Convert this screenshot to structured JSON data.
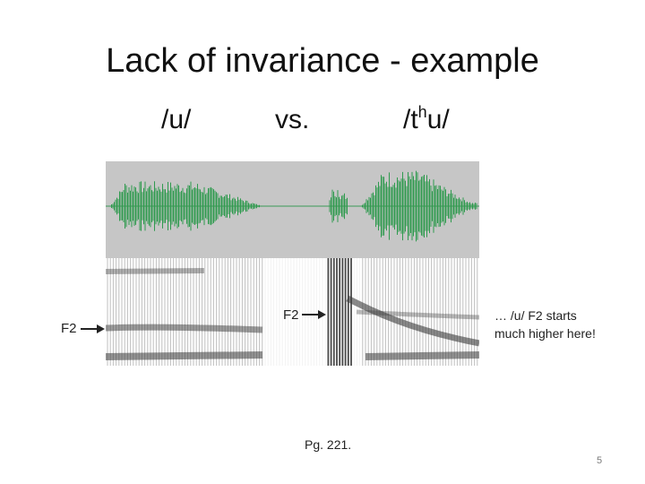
{
  "slide": {
    "title": "Lack of invariance - example",
    "left_transcription": "/u/",
    "versus": "vs.",
    "right_transcription_prefix": "/t",
    "right_transcription_superscript": "h",
    "right_transcription_suffix": "u/",
    "figure_label_left": "F2",
    "figure_label_middle": "F2",
    "annotation_line1": "… /u/ F2 starts",
    "annotation_line2": "much higher here!",
    "reference": "Pg. 221.",
    "page_number": "5"
  },
  "colors": {
    "waveform": "#2f9a4e",
    "waveform_background": "#c6c6c6",
    "spectrogram_background": "#ffffff",
    "arrow": "#222222"
  }
}
